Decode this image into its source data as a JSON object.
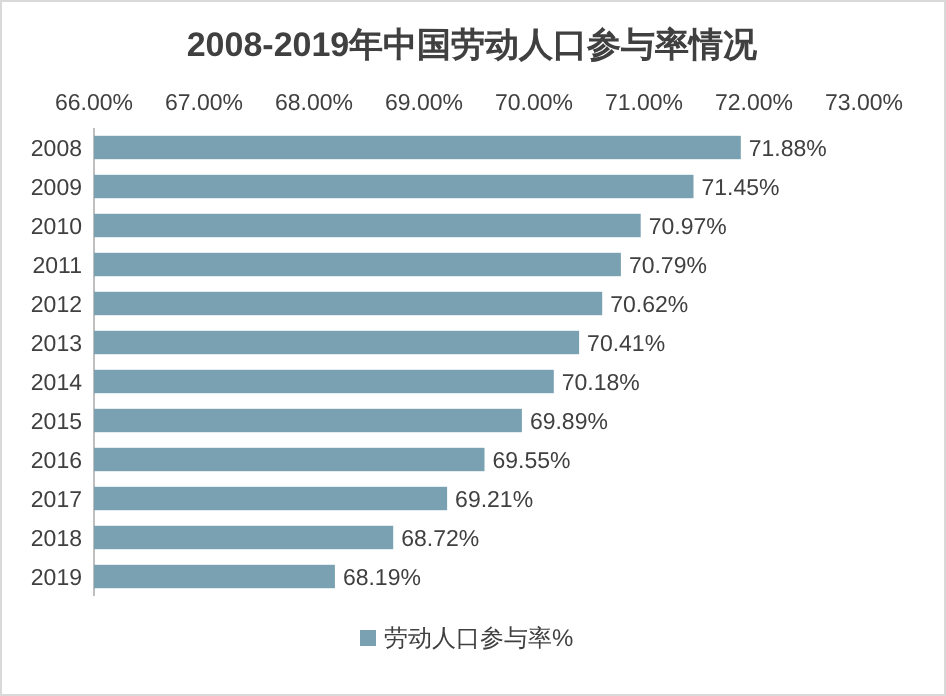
{
  "chart_data": {
    "type": "bar",
    "orientation": "horizontal",
    "title": "2008-2019年中国劳动人口参与率情况",
    "categories": [
      "2008",
      "2009",
      "2010",
      "2011",
      "2012",
      "2013",
      "2014",
      "2015",
      "2016",
      "2017",
      "2018",
      "2019"
    ],
    "series": [
      {
        "name": "劳动人口参与率%",
        "color": "#7aa1b2",
        "values": [
          71.88,
          71.45,
          70.97,
          70.79,
          70.62,
          70.41,
          70.18,
          69.89,
          69.55,
          69.21,
          68.72,
          68.19
        ],
        "value_labels": [
          "71.88%",
          "71.45%",
          "70.97%",
          "70.79%",
          "70.62%",
          "70.41%",
          "70.18%",
          "69.89%",
          "69.55%",
          "69.21%",
          "68.72%",
          "68.19%"
        ]
      }
    ],
    "xlim": [
      66,
      73
    ],
    "xticks": [
      {
        "value": 66,
        "label": "66.00%"
      },
      {
        "value": 67,
        "label": "67.00%"
      },
      {
        "value": 68,
        "label": "68.00%"
      },
      {
        "value": 69,
        "label": "69.00%"
      },
      {
        "value": 70,
        "label": "70.00%"
      },
      {
        "value": 71,
        "label": "71.00%"
      },
      {
        "value": 72,
        "label": "72.00%"
      },
      {
        "value": 73,
        "label": "73.00%"
      }
    ],
    "legend": "bottom",
    "grid": false
  }
}
